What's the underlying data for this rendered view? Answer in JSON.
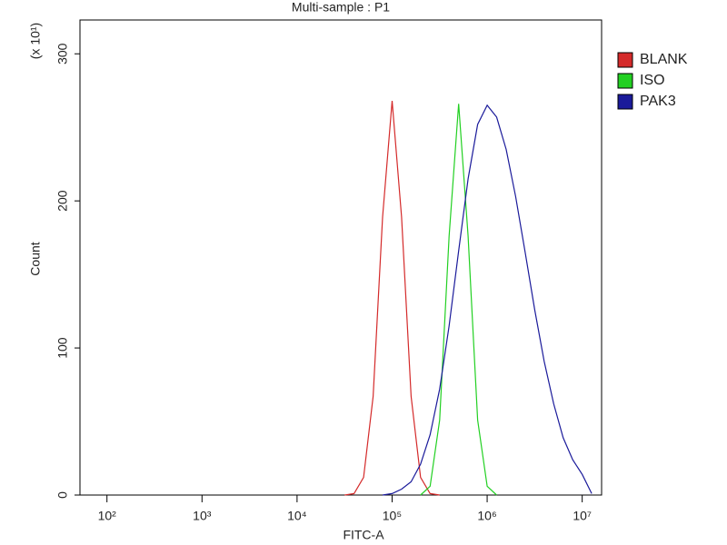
{
  "chart_data": {
    "type": "line",
    "title": "Multi-sample : P1",
    "x_label": "FITC-A",
    "y_label": "Count",
    "y_unit_label": "(x 10¹)",
    "x_scale": "log",
    "legend": "right",
    "x": [
      31623,
      39811,
      50119,
      63096,
      79433,
      100000,
      125893,
      158489,
      199526,
      251189,
      316228,
      398107,
      501187,
      630957,
      794328,
      1000000,
      1258925,
      1584893,
      1995262,
      2511886,
      3162278,
      3981072,
      5011872,
      6309573,
      7943282,
      10000000,
      12589254
    ],
    "series": [
      {
        "name": "BLANK",
        "color": "#d42a2a",
        "values": [
          0,
          1,
          12,
          67,
          189,
          268,
          189,
          67,
          12,
          1,
          0,
          null,
          null,
          null,
          null,
          null,
          null,
          null,
          null,
          null,
          null,
          null,
          null,
          null,
          null,
          null,
          null
        ]
      },
      {
        "name": "ISO",
        "color": "#22d022",
        "values": [
          null,
          null,
          null,
          null,
          null,
          null,
          null,
          null,
          0,
          6,
          51,
          176,
          266,
          176,
          51,
          6,
          0,
          null,
          null,
          null,
          null,
          null,
          null,
          null,
          null,
          null,
          null
        ]
      },
      {
        "name": "PAK3",
        "color": "#1a1a9a",
        "values": [
          null,
          null,
          null,
          null,
          0,
          1,
          4,
          9,
          21,
          41,
          72,
          115,
          166,
          215,
          252,
          265,
          257,
          235,
          203,
          165,
          126,
          91,
          62,
          39,
          24,
          14,
          1
        ]
      }
    ],
    "xlim": [
      52,
      16000000
    ],
    "xticks": [
      {
        "value": 100,
        "label": "10²"
      },
      {
        "value": 1000,
        "label": "10³"
      },
      {
        "value": 10000,
        "label": "10⁴"
      },
      {
        "value": 100000,
        "label": "10⁵"
      },
      {
        "value": 1000000,
        "label": "10⁶"
      },
      {
        "value": 10000000,
        "label": "10⁷"
      }
    ],
    "ylim": [
      0,
      323
    ],
    "yticks": [
      0,
      100,
      200,
      300
    ]
  }
}
